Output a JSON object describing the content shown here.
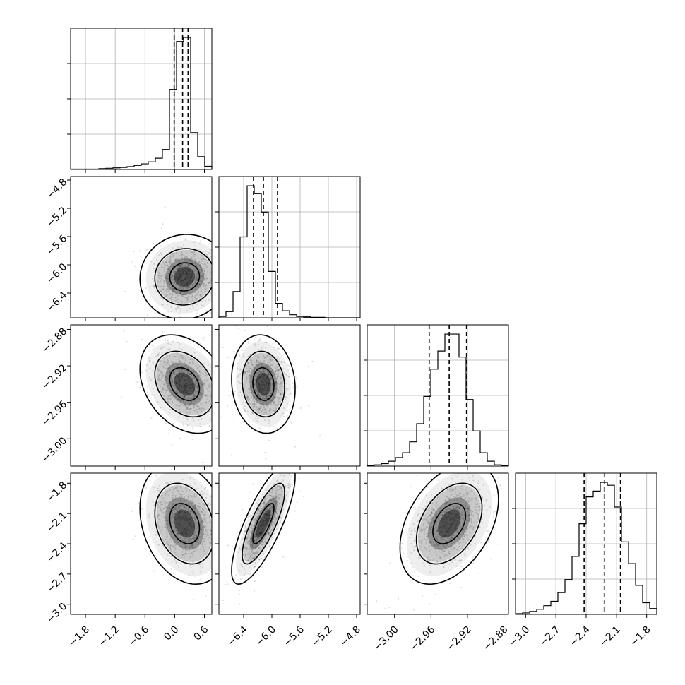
{
  "chart_data": {
    "type": "corner",
    "n_params": 4,
    "grid": true,
    "params": [
      {
        "range": [
          -2.1,
          0.75
        ],
        "ticks": [
          -1.8,
          -1.2,
          -0.6,
          0.0,
          0.6
        ],
        "tick_labels": [
          "−1.8",
          "−1.2",
          "−0.6",
          "0.0",
          "0.6"
        ],
        "quantiles": [
          -0.01,
          0.16,
          0.27
        ],
        "hist": [
          1,
          1,
          1,
          1,
          2,
          3,
          4,
          5,
          7,
          10,
          14,
          19,
          28,
          50,
          200,
          320,
          330,
          92,
          32,
          8
        ]
      },
      {
        "range": [
          -6.75,
          -4.75
        ],
        "ticks": [
          -6.4,
          -6.0,
          -5.6,
          -5.2,
          -4.8
        ],
        "tick_labels": [
          "−6.4",
          "−6.0",
          "−5.6",
          "−5.2",
          "−4.8"
        ],
        "quantiles": [
          -6.26,
          -6.12,
          -5.92
        ],
        "hist": [
          3,
          14,
          60,
          185,
          302,
          284,
          242,
          106,
          33,
          16,
          7,
          3,
          2,
          1,
          1,
          0,
          0,
          0,
          0,
          0
        ]
      },
      {
        "range": [
          -3.03,
          -2.875
        ],
        "ticks": [
          -3.0,
          -2.96,
          -2.92,
          -2.88
        ],
        "tick_labels": [
          "−3.00",
          "−2.96",
          "−2.92",
          "−2.88"
        ],
        "quantiles": [
          -2.962,
          -2.94,
          -2.921
        ],
        "hist": [
          1,
          2,
          4,
          8,
          14,
          22,
          40,
          70,
          115,
          160,
          190,
          218,
          218,
          180,
          110,
          58,
          22,
          8,
          2,
          1
        ]
      },
      {
        "range": [
          -3.1,
          -1.7
        ],
        "ticks": [
          -3.0,
          -2.7,
          -2.4,
          -2.1,
          -1.8
        ],
        "tick_labels": [
          "−3.0",
          "−2.7",
          "−2.4",
          "−2.1",
          "−1.8"
        ],
        "quantiles": [
          -2.42,
          -2.22,
          -2.06
        ],
        "hist": [
          1,
          2,
          4,
          7,
          12,
          18,
          30,
          48,
          80,
          125,
          162,
          170,
          182,
          178,
          148,
          100,
          70,
          40,
          16,
          8
        ]
      }
    ],
    "pairs": [
      {
        "x": 0,
        "y": 1,
        "mean": [
          0.2,
          -6.17
        ],
        "sd": [
          0.3,
          0.2
        ],
        "rho": 0.05
      },
      {
        "x": 0,
        "y": 2,
        "mean": [
          0.2,
          -2.94
        ],
        "sd": [
          0.3,
          0.018
        ],
        "rho": -0.3
      },
      {
        "x": 1,
        "y": 2,
        "mean": [
          -6.12,
          -2.94
        ],
        "sd": [
          0.15,
          0.018
        ],
        "rho": -0.1
      },
      {
        "x": 0,
        "y": 3,
        "mean": [
          0.2,
          -2.2
        ],
        "sd": [
          0.3,
          0.2
        ],
        "rho": -0.25
      },
      {
        "x": 1,
        "y": 3,
        "mean": [
          -6.12,
          -2.2
        ],
        "sd": [
          0.15,
          0.2
        ],
        "rho": 0.78
      },
      {
        "x": 2,
        "y": 3,
        "mean": [
          -2.94,
          -2.2
        ],
        "sd": [
          0.018,
          0.2
        ],
        "rho": 0.4
      }
    ]
  }
}
